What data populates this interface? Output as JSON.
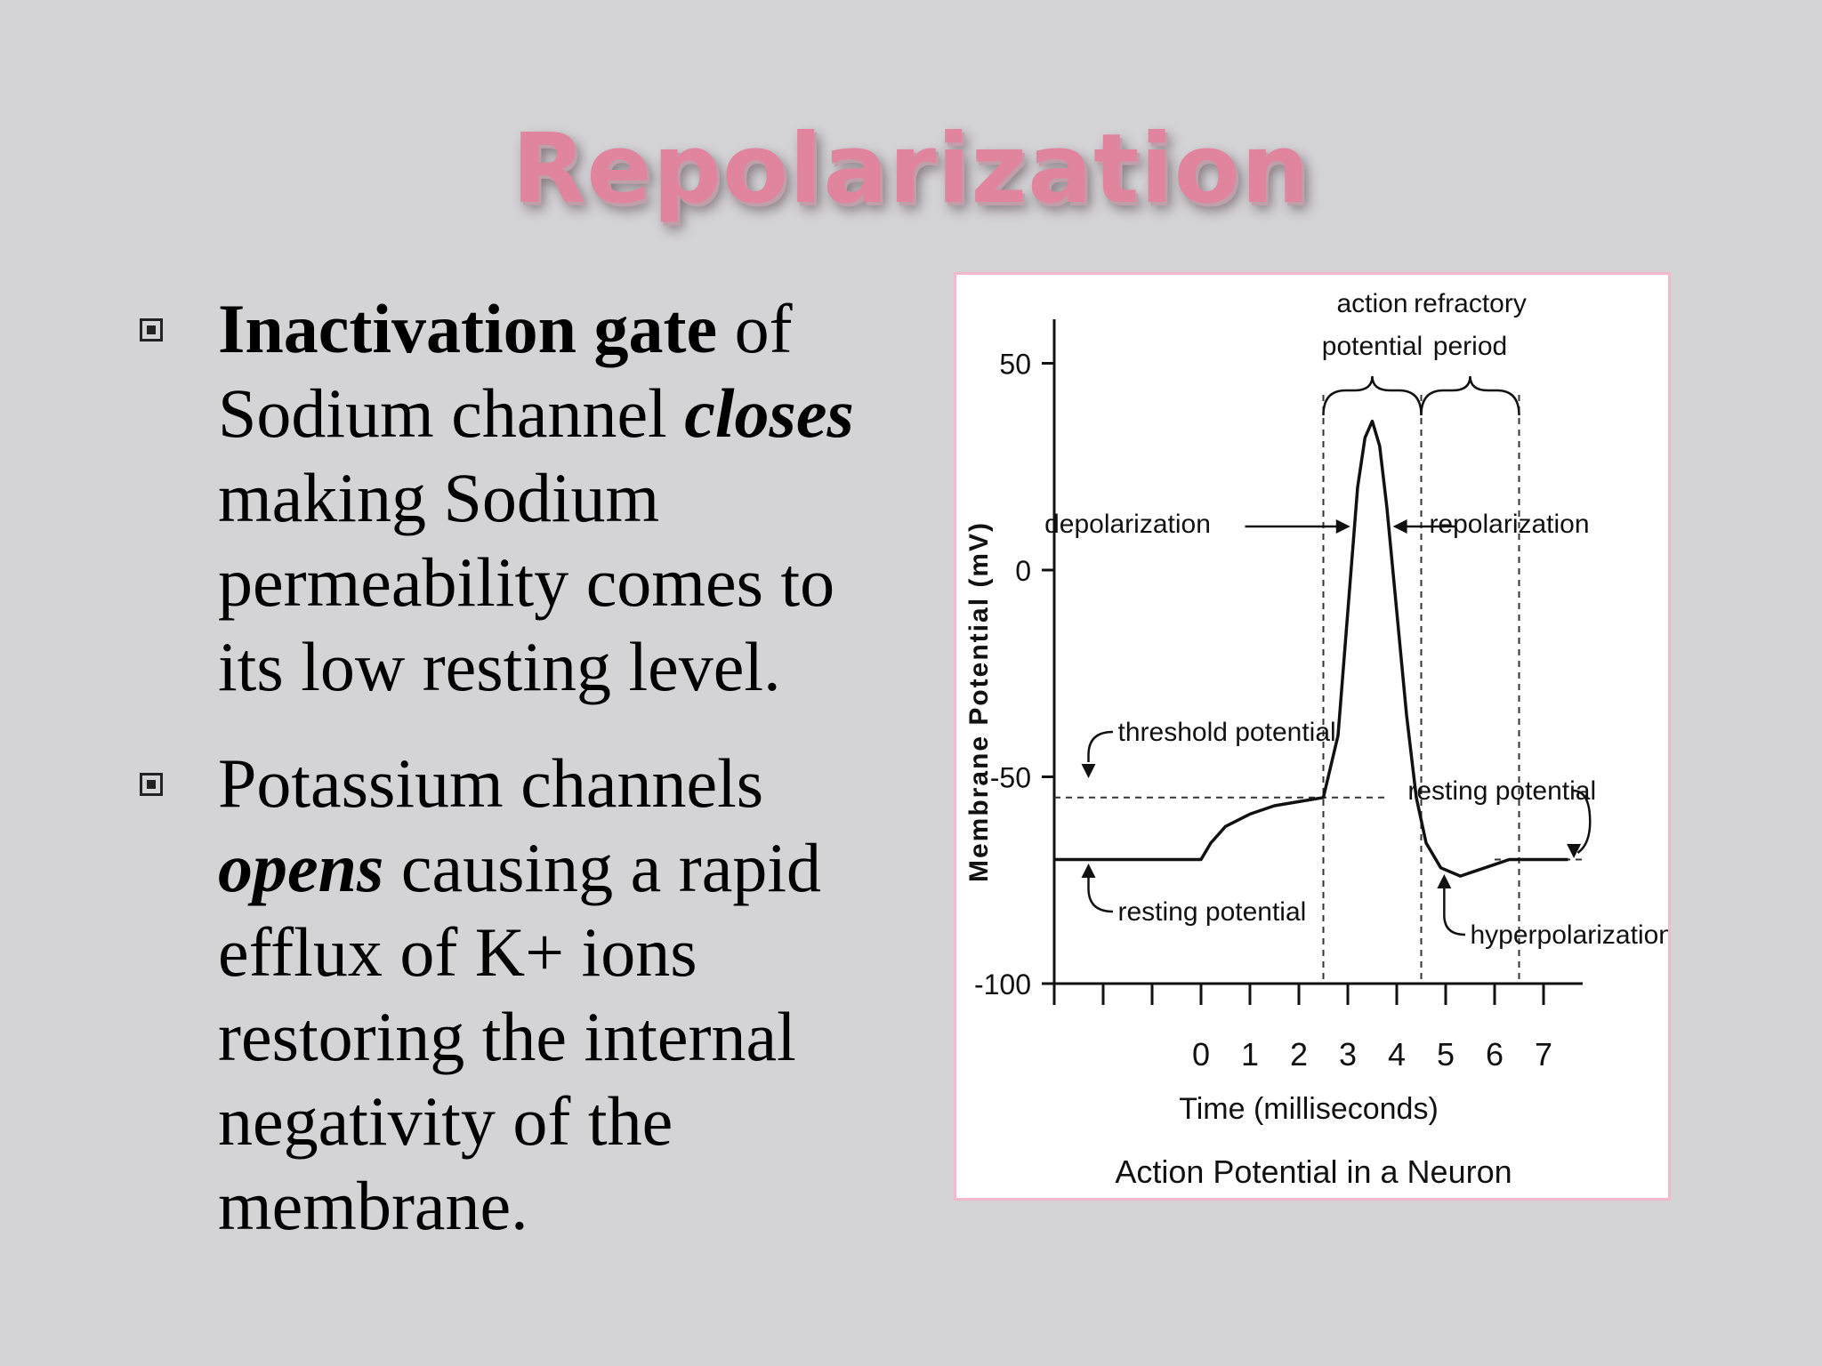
{
  "slide": {
    "title": "Repolarization",
    "bullets": [
      {
        "lines": [
          [
            {
              "t": "Inactivation gate",
              "s": "b"
            },
            {
              "t": " of",
              "s": ""
            }
          ],
          [
            {
              "t": "Sodium channel ",
              "s": ""
            },
            {
              "t": "closes",
              "s": "bi"
            }
          ],
          [
            {
              "t": "making  Sodium",
              "s": ""
            }
          ],
          [
            {
              "t": "permeability comes to",
              "s": ""
            }
          ],
          [
            {
              "t": "its low resting level.",
              "s": ""
            }
          ]
        ]
      },
      {
        "lines": [
          [
            {
              "t": "Potassium channels",
              "s": ""
            }
          ],
          [
            {
              "t": "opens",
              "s": "bi"
            },
            {
              "t": " causing a rapid",
              "s": ""
            }
          ],
          [
            {
              "t": "efflux of K+ ions",
              "s": ""
            }
          ],
          [
            {
              "t": "restoring the internal",
              "s": ""
            }
          ],
          [
            {
              "t": "negativity of the",
              "s": ""
            }
          ],
          [
            {
              "t": "membrane.",
              "s": ""
            }
          ]
        ]
      }
    ]
  },
  "chart_data": {
    "type": "line",
    "title": "Action Potential in a Neuron",
    "xlabel": "Time (milliseconds)",
    "ylabel": "Membrane Potential (mV)",
    "x_ticks": [
      "0",
      "1",
      "2",
      "3",
      "4",
      "5",
      "6",
      "7"
    ],
    "y_ticks": [
      "50",
      "0",
      "-50",
      "-100"
    ],
    "xlim": [
      -3,
      7.8
    ],
    "ylim": [
      -100,
      60
    ],
    "series": [
      {
        "points": [
          [
            -3,
            -70
          ],
          [
            0,
            -70
          ],
          [
            0.2,
            -66
          ],
          [
            0.5,
            -62
          ],
          [
            1,
            -59
          ],
          [
            1.5,
            -57
          ],
          [
            2,
            -56
          ],
          [
            2.5,
            -55
          ],
          [
            2.8,
            -40
          ],
          [
            3,
            -10
          ],
          [
            3.2,
            20
          ],
          [
            3.35,
            32
          ],
          [
            3.5,
            36
          ],
          [
            3.65,
            30
          ],
          [
            3.8,
            15
          ],
          [
            4,
            -10
          ],
          [
            4.2,
            -35
          ],
          [
            4.4,
            -55
          ],
          [
            4.6,
            -66
          ],
          [
            4.9,
            -72
          ],
          [
            5.3,
            -74
          ],
          [
            5.8,
            -72
          ],
          [
            6.3,
            -70
          ],
          [
            7.5,
            -70
          ]
        ]
      }
    ],
    "threshold": -55,
    "resting": -70,
    "annotations": {
      "brace1": [
        "action",
        "potential"
      ],
      "brace2": [
        "refractory",
        "period"
      ],
      "depolarization": "depolarization",
      "repolarization": "repolarization",
      "threshold_potential": "threshold potential",
      "resting_potential_left": "resting potential",
      "resting_potential_right": "resting potential",
      "hyperpolarization": "hyperpolarization"
    }
  }
}
